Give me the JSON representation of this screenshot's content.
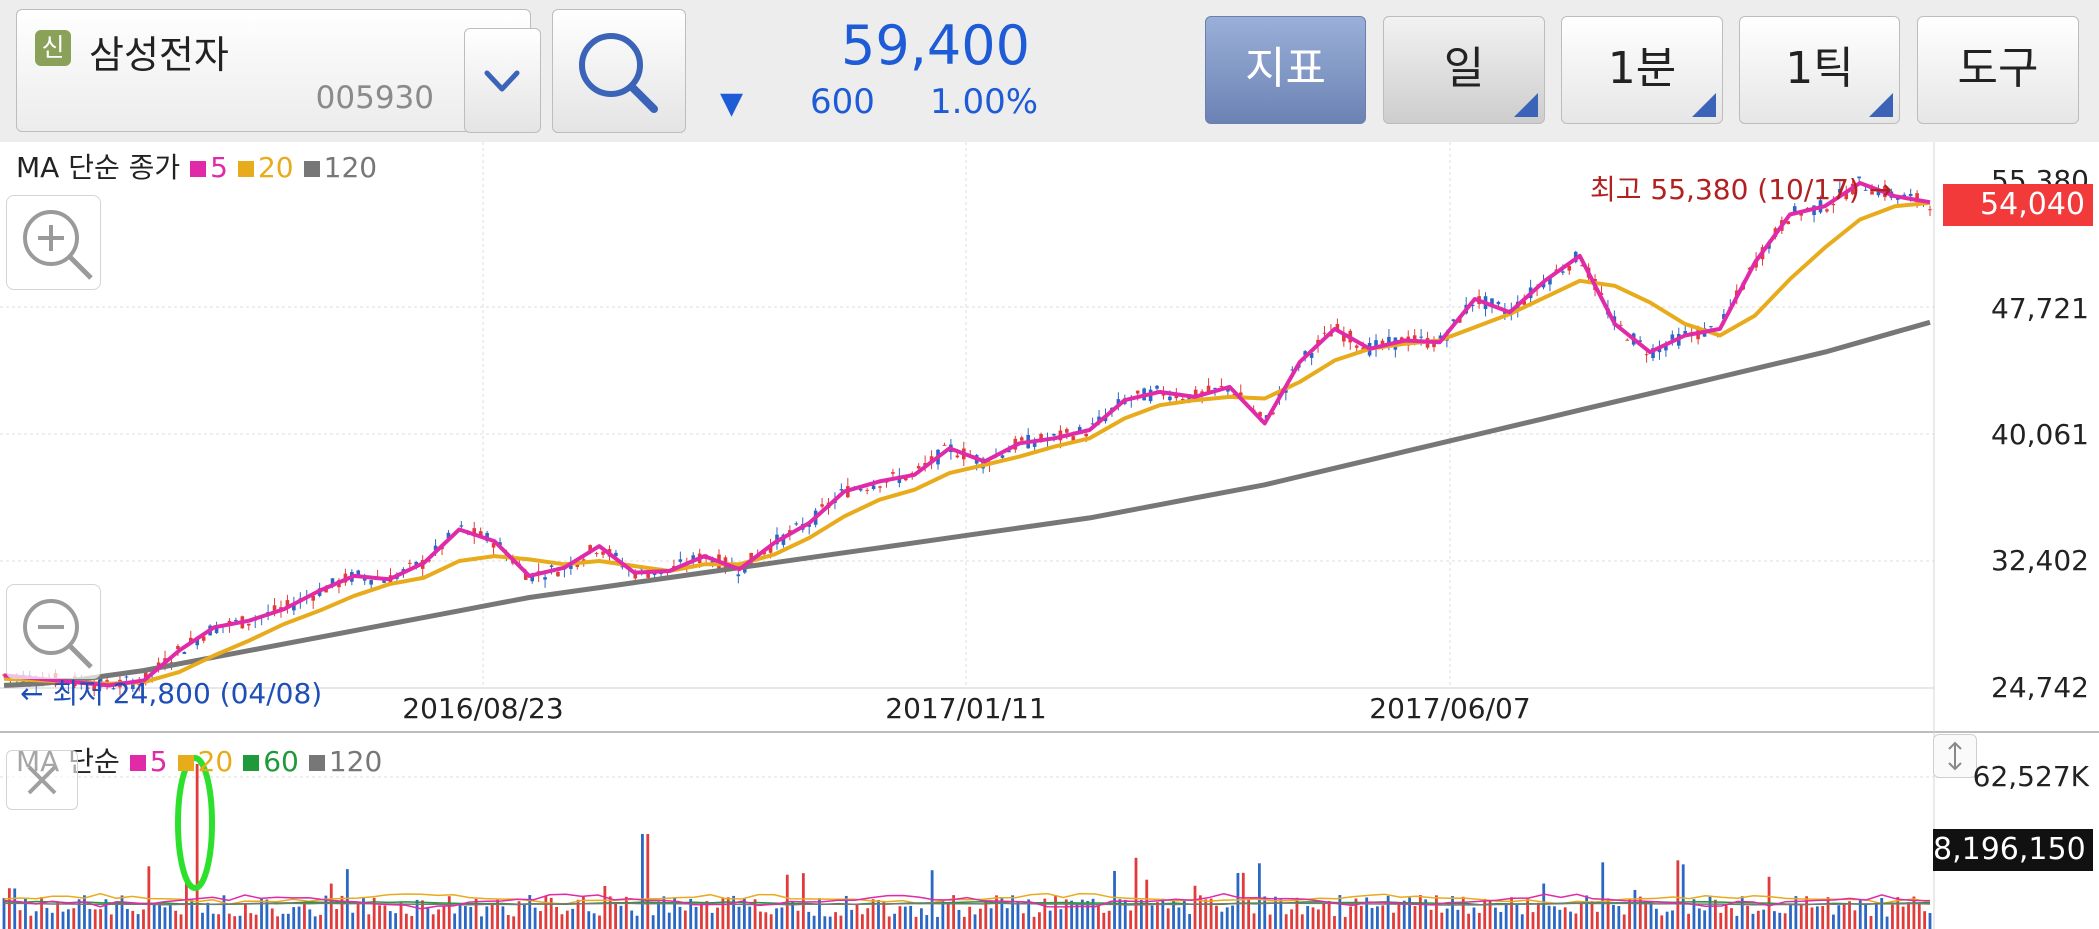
{
  "header": {
    "badge": "신",
    "stock_name": "삼성전자",
    "stock_code": "005930",
    "price": "59,400",
    "change": "600",
    "change_pct": "1.00%",
    "buttons": {
      "indicator": "지표",
      "day": "일",
      "minute": "1분",
      "tick": "1틱",
      "tools": "도구"
    }
  },
  "colors": {
    "ma5": "#e02aa8",
    "ma20": "#e8ab1c",
    "ma60": "#1f9a3a",
    "ma120": "#777777",
    "up": "#e23b3b",
    "down": "#2b67c4",
    "accent": "#1e5bd6"
  },
  "price_panel": {
    "legend": {
      "title": "MA 단순 종가",
      "ma": [
        "5",
        "20",
        "120"
      ]
    },
    "y_labels": [
      "55,380",
      "47,721",
      "40,061",
      "32,402",
      "24,742"
    ],
    "x_labels": [
      "2016/08/23",
      "2017/01/11",
      "2017/06/07"
    ],
    "current_price": "54,040",
    "high_annotation": "최고 55,380 (10/17) →",
    "low_annotation": "← 최저 24,800 (04/08)"
  },
  "volume_panel": {
    "legend": {
      "title": "MA 단순",
      "ma": [
        "5",
        "20",
        "60",
        "120"
      ]
    },
    "y_label": "62,527K",
    "current_volume": "8,196,150"
  },
  "chart_data": {
    "type": "line",
    "title": "",
    "x_ticks": [
      "2016/08/23",
      "2017/01/11",
      "2017/06/07"
    ],
    "ylim": [
      24742,
      55380
    ],
    "y_ticks": [
      24742,
      32402,
      40061,
      47721,
      55380
    ],
    "high": {
      "value": 55380,
      "date": "10/17"
    },
    "low": {
      "value": 24800,
      "date": "04/08"
    },
    "last_close": 54040,
    "grid": true,
    "legend": "top-left",
    "series": [
      {
        "name": "5",
        "values": [
          25500,
          25300,
          25100,
          24900,
          25200,
          27000,
          28400,
          28800,
          29500,
          30600,
          31500,
          31300,
          32300,
          34300,
          33600,
          31500,
          32000,
          33300,
          31700,
          31800,
          32700,
          31900,
          33500,
          34700,
          36600,
          37200,
          37600,
          39200,
          38400,
          39500,
          39800,
          40300,
          42100,
          42600,
          42300,
          42900,
          40700,
          44400,
          46400,
          45200,
          45700,
          45600,
          48200,
          47400,
          49300,
          50800,
          46700,
          45000,
          46000,
          46400,
          50400,
          53300,
          53800,
          55200,
          54400,
          54040
        ]
      },
      {
        "name": "20",
        "values": [
          25300,
          25200,
          25100,
          25000,
          25100,
          25700,
          26700,
          27600,
          28600,
          29400,
          30300,
          31000,
          31400,
          32400,
          32700,
          32500,
          32200,
          32400,
          32100,
          31800,
          32200,
          32200,
          32800,
          33800,
          35100,
          36100,
          36700,
          37700,
          38200,
          38700,
          39300,
          39800,
          41000,
          41800,
          42100,
          42300,
          42200,
          43200,
          44500,
          45200,
          45500,
          45700,
          46500,
          47300,
          48300,
          49300,
          49000,
          48000,
          46700,
          46000,
          47200,
          49400,
          51300,
          53000,
          53800,
          54000
        ]
      },
      {
        "name": "120",
        "values": [
          24900,
          25000,
          25200,
          25500,
          25800,
          26200,
          26600,
          27000,
          27400,
          27800,
          28200,
          28600,
          29000,
          29400,
          29800,
          30200,
          30500,
          30800,
          31100,
          31400,
          31700,
          32000,
          32300,
          32600,
          32900,
          33200,
          33500,
          33800,
          34100,
          34400,
          34700,
          35000,
          35400,
          35800,
          36200,
          36600,
          37000,
          37500,
          38000,
          38500,
          39000,
          39500,
          40000,
          40500,
          41000,
          41500,
          42000,
          42500,
          43000,
          43500,
          44000,
          44500,
          45000,
          45600,
          46200,
          46800
        ]
      }
    ]
  }
}
